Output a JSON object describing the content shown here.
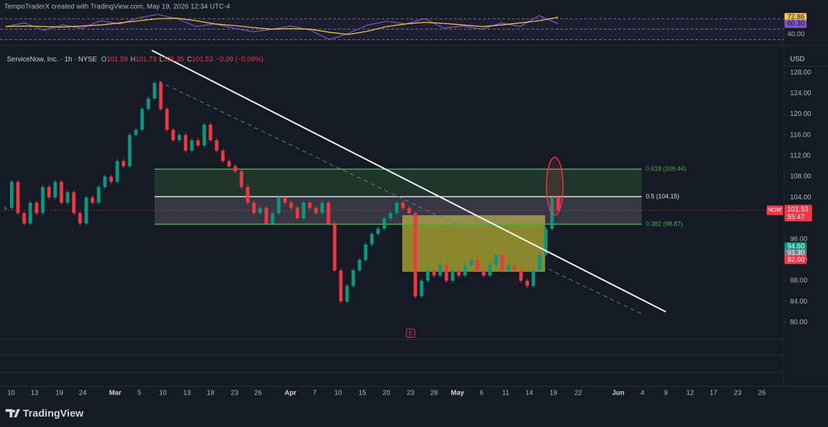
{
  "header": "TempoTraderX created with TradingView.com, May 19, 2026 12:34 UTC-4",
  "chart_data": {
    "type": "candlestick",
    "title": "ServiceNow, Inc. · 1h · NYSE",
    "ohlc_legend": [
      {
        "key": "O",
        "value": "101.59"
      },
      {
        "key": "H",
        "value": "101.73"
      },
      {
        "key": "L",
        "value": "101.35"
      },
      {
        "key": "C",
        "value": "101.53"
      }
    ],
    "change": "−0.09 (−0.09%)",
    "currency": "USD",
    "categories": [
      "10",
      "13",
      "19",
      "24",
      "Mar",
      "5",
      "10",
      "13",
      "18",
      "23",
      "26",
      "Apr",
      "7",
      "10",
      "15",
      "20",
      "23",
      "28",
      "May",
      "6",
      "11",
      "14",
      "19",
      "22",
      "Jun",
      "4",
      "9",
      "12",
      "17",
      "23",
      "26"
    ],
    "closes": [
      102,
      107,
      101,
      99,
      103,
      101,
      106,
      104,
      107,
      103,
      105,
      101,
      99,
      104,
      103,
      106,
      108,
      107,
      111,
      110,
      116,
      117,
      121,
      123,
      126,
      121,
      117,
      115,
      116,
      113,
      115,
      114,
      118,
      115,
      113,
      111,
      110,
      109,
      106,
      103,
      101,
      102,
      99,
      101,
      104,
      103,
      102,
      100,
      103,
      102,
      101,
      103,
      99,
      90,
      84,
      87,
      90,
      92,
      95,
      97,
      98,
      100,
      101,
      103,
      102,
      101,
      85,
      88,
      90,
      89,
      91,
      88,
      90,
      89,
      91,
      92,
      90,
      89,
      91,
      93,
      90,
      91,
      90,
      88,
      87,
      90,
      93,
      98,
      104,
      101.53
    ],
    "up_color": "#089981",
    "down_color": "#f23645",
    "ylim": [
      77,
      132
    ],
    "yticks": [
      {
        "value": 128,
        "label": "128.00"
      },
      {
        "value": 124,
        "label": "124.00"
      },
      {
        "value": 120,
        "label": "120.00"
      },
      {
        "value": 116,
        "label": "116.00"
      },
      {
        "value": 112,
        "label": "112.00"
      },
      {
        "value": 108,
        "label": "108.00"
      },
      {
        "value": 104,
        "label": "104.00"
      },
      {
        "value": 100,
        "label": "100.00"
      },
      {
        "value": 96,
        "label": "96.00"
      },
      {
        "value": 92,
        "label": "92.00"
      },
      {
        "value": 88,
        "label": "88.00"
      },
      {
        "value": 84,
        "label": "84.00"
      },
      {
        "value": 80,
        "label": "80.00"
      }
    ],
    "fib_levels": [
      {
        "value": 109.44,
        "label": "0.618 (109.44)",
        "color": "#4caf50"
      },
      {
        "value": 104.15,
        "label": "0.5 (104.15)",
        "color": "#e0e3eb"
      },
      {
        "value": 98.87,
        "label": "0.382 (98.87)",
        "color": "#4caf50"
      }
    ],
    "last_price": {
      "label": "NOW",
      "value": 101.53,
      "value_label": "101.53",
      "countdown": "55:47",
      "color": "#f23645"
    },
    "price_tags": [
      {
        "value": 94.6,
        "label": "94.60",
        "color": "#089981"
      },
      {
        "value": 93.3,
        "label": "93.30",
        "color": "#787b86"
      },
      {
        "value": 92,
        "label": "92.00",
        "color": "#f23645"
      }
    ],
    "earnings_marker": "E",
    "rsi": {
      "ylim": [
        24,
        82
      ],
      "levels": [
        70,
        50,
        30
      ],
      "yticks": [
        {
          "value": 72.86,
          "color": "#f7c548"
        },
        {
          "value": 60.3,
          "label": "60.30",
          "color": "#7e57c2"
        },
        {
          "value": 40,
          "label": "40.00"
        }
      ],
      "series": [
        {
          "color": "#7e57c2",
          "values": [
            55,
            62,
            48,
            58,
            52,
            66,
            60,
            72,
            78,
            70,
            55,
            60,
            52,
            45,
            50,
            56,
            48,
            30,
            42,
            58,
            65,
            60,
            70,
            52,
            56,
            50,
            62,
            55,
            76,
            60.3
          ]
        },
        {
          "color": "#f7c548",
          "values": [
            55,
            56,
            55,
            54,
            56,
            58,
            62,
            66,
            70,
            71,
            66,
            60,
            57,
            53,
            50,
            51,
            50,
            44,
            40,
            46,
            55,
            60,
            63,
            61,
            58,
            55,
            58,
            62,
            66,
            72.86
          ]
        }
      ]
    }
  },
  "footer": "TradingView"
}
